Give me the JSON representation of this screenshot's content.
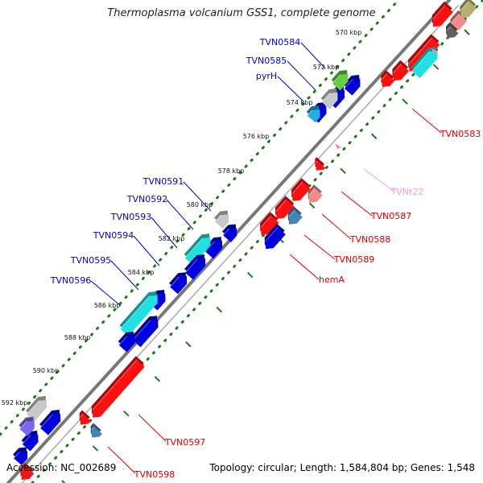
{
  "title": "Thermoplasma volcanium GSS1, complete genome",
  "footer": {
    "accession": "Accession: NC_002689",
    "summary": "Topology: circular; Length: 1,584,804 bp; Genes: 1,548"
  },
  "colors": {
    "background": "#ffffff",
    "backbone": "#808080",
    "tick": "#1a7a1a",
    "forward_label": "#0000cc",
    "reverse_label": "#dd0000",
    "rna_label": "#ff99cc"
  },
  "scale": {
    "ticks": [
      "570 kbp",
      "572 kbp",
      "574 kbp",
      "576 kbp",
      "578 kbp",
      "580 kbp",
      "582 kbp",
      "584 kbp",
      "586 kbp",
      "588 kbp",
      "590 kbp",
      "592 kbp"
    ]
  },
  "forward_labels": [
    "TVN0584",
    "TVN0585",
    "pyrH",
    "TVN0591",
    "TVN0592",
    "TVN0593",
    "TVN0594",
    "TVN0595",
    "TVN0596"
  ],
  "reverse_labels": [
    "TVN0583",
    "TVNt22",
    "TVN0587",
    "TVN0588",
    "TVN0589",
    "hemA",
    "TVN0597",
    "TVN0598"
  ]
}
